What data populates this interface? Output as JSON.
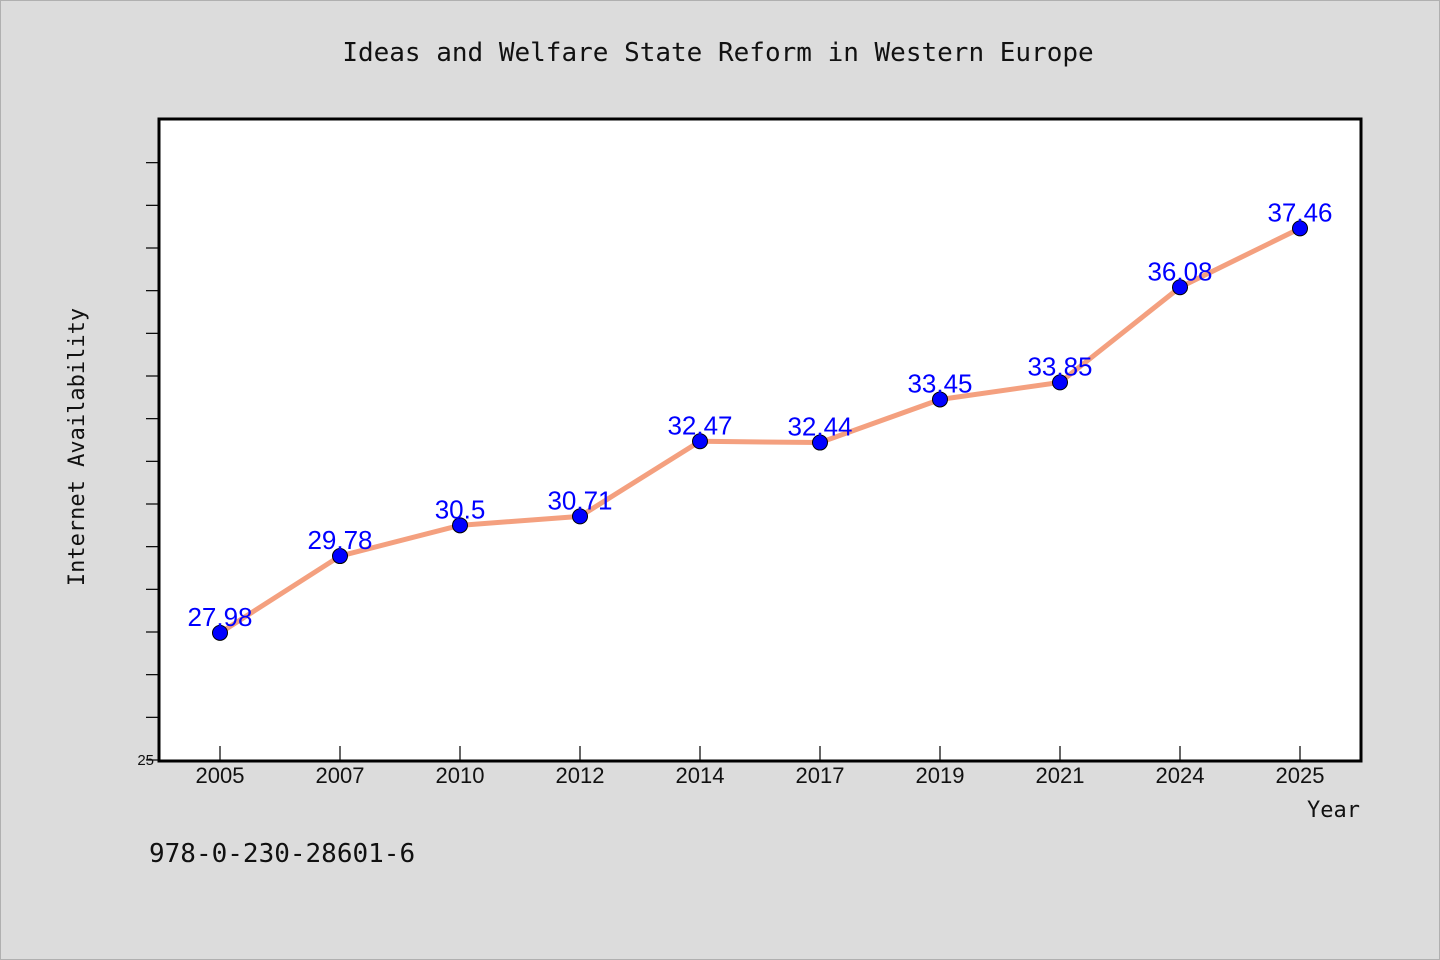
{
  "chart_data": {
    "type": "line",
    "title": "Ideas and Welfare State Reform in Western Europe",
    "xlabel": "Year",
    "ylabel": "Internet Availability",
    "categories": [
      "2005",
      "2007",
      "2010",
      "2012",
      "2014",
      "2017",
      "2019",
      "2021",
      "2024",
      "2025"
    ],
    "series": [
      {
        "values": [
          27.98,
          29.78,
          30.5,
          30.71,
          32.47,
          32.44,
          33.45,
          33.85,
          36.08,
          37.46
        ],
        "labels": [
          "27.98",
          "29.78",
          "30.5",
          "30.71",
          "32.47",
          "32.44",
          "33.45",
          "33.85",
          "36.08",
          "37.46"
        ]
      }
    ],
    "ylim": [
      25,
      40
    ],
    "yticks": [
      25,
      26,
      27,
      28,
      29,
      30,
      31,
      32,
      33,
      34,
      35,
      36,
      37,
      38,
      39
    ],
    "ytick_labels_shown": [
      "25"
    ],
    "grid": false,
    "colors": {
      "line": "#f4a07f",
      "marker": "#0000ff",
      "label": "#0000ff",
      "background": "#dcdcdc",
      "plot_background": "#ffffff"
    }
  },
  "footnote": "978-0-230-28601-6"
}
